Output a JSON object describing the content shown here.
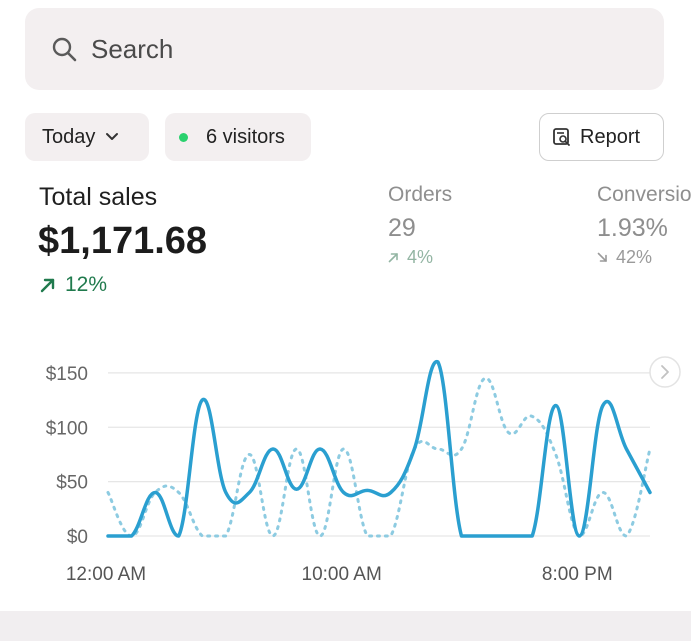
{
  "search": {
    "placeholder": "Search",
    "icon": "search-icon"
  },
  "filters": {
    "date_range": "Today",
    "visitors": "6 visitors",
    "visitors_dot_color": "#2ad16e",
    "report_label": "Report"
  },
  "metrics": {
    "total_sales": {
      "label": "Total sales",
      "value": "$1,171.68",
      "change": "12%",
      "direction": "up",
      "color": "#207a4d"
    },
    "orders": {
      "label": "Orders",
      "value": "29",
      "change": "4%",
      "direction": "up"
    },
    "conversion": {
      "label": "Conversion",
      "value": "1.93%",
      "change": "42%",
      "direction": "down"
    }
  },
  "chart_data": {
    "type": "line",
    "yticks": [
      "$0",
      "$50",
      "$100",
      "$150"
    ],
    "ylim": [
      0,
      160
    ],
    "xticks": [
      "12:00 AM",
      "10:00 AM",
      "8:00 PM"
    ],
    "xlim": [
      0,
      23
    ],
    "grid": true,
    "series": [
      {
        "style": "solid",
        "color": "#2a9fd0",
        "x": [
          0,
          1,
          2,
          3,
          4,
          5,
          6,
          7,
          8,
          9,
          10,
          11,
          12,
          13,
          14,
          15,
          16,
          17,
          18,
          19,
          20,
          21,
          22,
          23
        ],
        "values": [
          0,
          0,
          40,
          0,
          125,
          40,
          40,
          80,
          43,
          80,
          40,
          42,
          40,
          80,
          160,
          0,
          0,
          0,
          0,
          120,
          0,
          120,
          80,
          40
        ]
      },
      {
        "style": "dotted",
        "color": "#8dcbe1",
        "x": [
          0,
          1,
          2,
          3,
          4,
          5,
          6,
          7,
          8,
          9,
          10,
          11,
          12,
          13,
          14,
          15,
          16,
          17,
          18,
          19,
          20,
          21,
          22,
          23
        ],
        "values": [
          40,
          0,
          40,
          40,
          0,
          0,
          75,
          0,
          80,
          0,
          80,
          0,
          0,
          80,
          80,
          80,
          145,
          95,
          110,
          75,
          0,
          40,
          0,
          80
        ]
      }
    ],
    "colors": {
      "primary": "#2a9fd0",
      "comparison": "#8dcbe1",
      "grid": "#e6e6e6"
    }
  }
}
